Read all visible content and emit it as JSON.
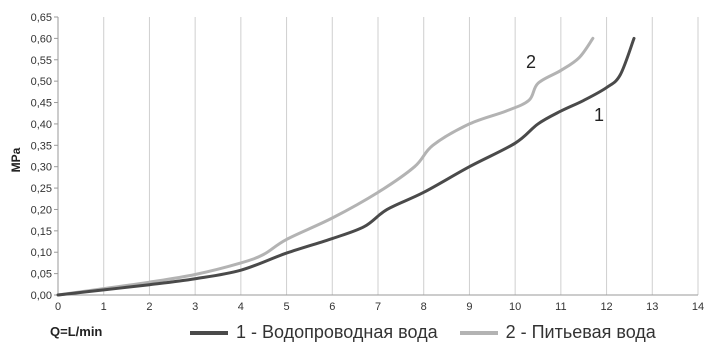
{
  "chart_data": {
    "type": "line",
    "ylabel": "MPa",
    "xlabel": "Q=L/min",
    "xlim": [
      0,
      14
    ],
    "ylim": [
      0,
      0.65
    ],
    "x_ticks": [
      "0",
      "1",
      "2",
      "3",
      "4",
      "5",
      "6",
      "7",
      "8",
      "9",
      "10",
      "11",
      "12",
      "13",
      "14"
    ],
    "y_ticks": [
      "0,00",
      "0,05",
      "0,10",
      "0,15",
      "0,20",
      "0,25",
      "0,30",
      "0,35",
      "0,40",
      "0,45",
      "0,50",
      "0,55",
      "0,60",
      "0,65"
    ],
    "grid": "vertical",
    "legend": "bottom",
    "series": [
      {
        "name": "1 - Водопроводная вода",
        "label": "1",
        "color": "#4a4a4a",
        "points": [
          [
            0,
            0
          ],
          [
            1,
            0.012
          ],
          [
            2,
            0.024
          ],
          [
            3,
            0.038
          ],
          [
            4,
            0.058
          ],
          [
            5,
            0.098
          ],
          [
            6,
            0.132
          ],
          [
            6.7,
            0.16
          ],
          [
            7.2,
            0.2
          ],
          [
            8,
            0.24
          ],
          [
            9,
            0.3
          ],
          [
            10,
            0.355
          ],
          [
            10.5,
            0.4
          ],
          [
            11,
            0.43
          ],
          [
            11.5,
            0.455
          ],
          [
            12,
            0.485
          ],
          [
            12.3,
            0.515
          ],
          [
            12.6,
            0.6
          ]
        ]
      },
      {
        "name": "2 - Питьевая вода",
        "label": "2",
        "color": "#b3b3b3",
        "points": [
          [
            0,
            0
          ],
          [
            1,
            0.015
          ],
          [
            2,
            0.03
          ],
          [
            3,
            0.048
          ],
          [
            4,
            0.075
          ],
          [
            4.5,
            0.095
          ],
          [
            5,
            0.13
          ],
          [
            6,
            0.18
          ],
          [
            7,
            0.24
          ],
          [
            7.8,
            0.3
          ],
          [
            8.2,
            0.35
          ],
          [
            9,
            0.4
          ],
          [
            9.8,
            0.43
          ],
          [
            10.3,
            0.455
          ],
          [
            10.5,
            0.495
          ],
          [
            11,
            0.525
          ],
          [
            11.4,
            0.555
          ],
          [
            11.7,
            0.6
          ]
        ]
      }
    ]
  }
}
